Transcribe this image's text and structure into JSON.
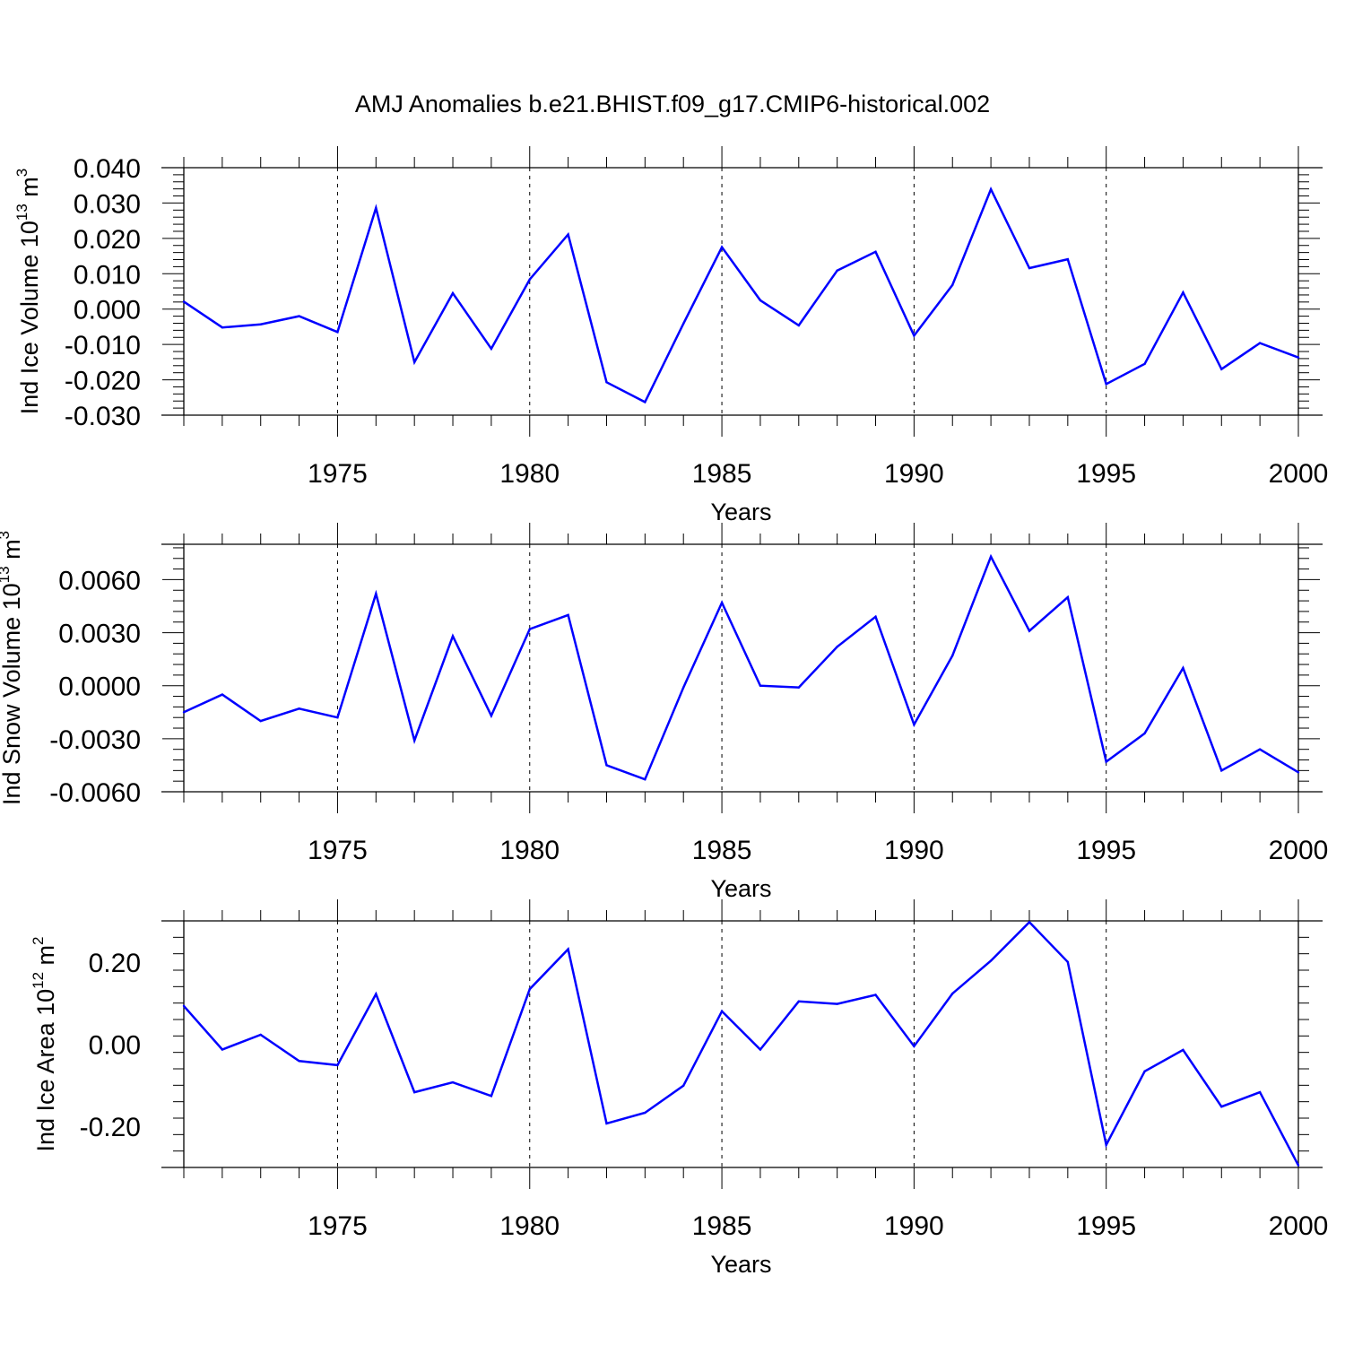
{
  "title": "AMJ Anomalies b.e21.BHIST.f09_g17.CMIP6-historical.002",
  "colors": {
    "line": "#0000ff",
    "axis": "#000000",
    "grid": "#000000"
  },
  "chart_data": [
    {
      "type": "line",
      "xlabel": "Years",
      "ylabel": {
        "text": "Ind Ice Volume 10",
        "exp": "13",
        "unit": " m",
        "unit_exp": "3"
      },
      "xlim": [
        1971,
        2000
      ],
      "ylim": [
        -0.03,
        0.04
      ],
      "xticks": [
        "1975",
        "1980",
        "1985",
        "1990",
        "1995",
        "2000"
      ],
      "yticks": [
        "-0.030",
        "-0.020",
        "-0.010",
        "0.000",
        "0.010",
        "0.020",
        "0.030",
        "0.040"
      ],
      "grid": "dashed vertical at major x ticks",
      "x": [
        1971,
        1972,
        1973,
        1974,
        1975,
        1976,
        1977,
        1978,
        1979,
        1980,
        1981,
        1982,
        1983,
        1984,
        1985,
        1986,
        1987,
        1988,
        1989,
        1990,
        1991,
        1992,
        1993,
        1994,
        1995,
        1996,
        1997,
        1998,
        1999,
        2000
      ],
      "y": [
        0.0021,
        -0.0052,
        -0.0043,
        -0.002,
        -0.0065,
        0.0286,
        -0.015,
        0.0045,
        -0.0112,
        0.0084,
        0.0211,
        -0.0207,
        -0.0263,
        -0.0041,
        0.0175,
        0.0025,
        -0.0046,
        0.0109,
        0.0162,
        -0.0075,
        0.0068,
        0.0339,
        0.0116,
        0.0141,
        -0.0212,
        -0.0155,
        0.0047,
        -0.017,
        -0.0096,
        -0.0137
      ]
    },
    {
      "type": "line",
      "xlabel": "Years",
      "ylabel": {
        "text": "Ind Snow Volume 10",
        "exp": "13",
        "unit": " m",
        "unit_exp": "3"
      },
      "xlim": [
        1971,
        2000
      ],
      "ylim": [
        -0.006,
        0.008
      ],
      "xticks": [
        "1975",
        "1980",
        "1985",
        "1990",
        "1995",
        "2000"
      ],
      "yticks": [
        "-0.0060",
        "-0.0030",
        "0.0000",
        "0.0030",
        "0.0060"
      ],
      "grid": "dashed vertical at major x ticks",
      "x": [
        1971,
        1972,
        1973,
        1974,
        1975,
        1976,
        1977,
        1978,
        1979,
        1980,
        1981,
        1982,
        1983,
        1984,
        1985,
        1986,
        1987,
        1988,
        1989,
        1990,
        1991,
        1992,
        1993,
        1994,
        1995,
        1996,
        1997,
        1998,
        1999,
        2000
      ],
      "y": [
        -0.0015,
        -0.0005,
        -0.002,
        -0.0013,
        -0.0018,
        0.0052,
        -0.0031,
        0.0028,
        -0.0017,
        0.0032,
        0.004,
        -0.0045,
        -0.0053,
        -0.0001,
        0.0047,
        0.0,
        -0.0001,
        0.0022,
        0.0039,
        -0.0022,
        0.0017,
        0.0073,
        0.0031,
        0.005,
        -0.0043,
        -0.0027,
        0.001,
        -0.0048,
        -0.0036,
        -0.0049
      ]
    },
    {
      "type": "line",
      "xlabel": "Years",
      "ylabel": {
        "text": "Ind Ice Area 10",
        "exp": "12",
        "unit": " m",
        "unit_exp": "2"
      },
      "xlim": [
        1971,
        2000
      ],
      "ylim": [
        -0.3,
        0.3
      ],
      "xticks": [
        "1975",
        "1980",
        "1985",
        "1990",
        "1995",
        "2000"
      ],
      "yticks": [
        "-0.20",
        "0.00",
        "0.20"
      ],
      "grid": "dashed vertical at major x ticks",
      "x": [
        1971,
        1972,
        1973,
        1974,
        1975,
        1976,
        1977,
        1978,
        1979,
        1980,
        1981,
        1982,
        1983,
        1984,
        1985,
        1986,
        1987,
        1988,
        1989,
        1990,
        1991,
        1992,
        1993,
        1994,
        1995,
        1996,
        1997,
        1998,
        1999,
        2000
      ],
      "y": [
        0.093,
        -0.013,
        0.023,
        -0.041,
        -0.051,
        0.122,
        -0.117,
        -0.093,
        -0.126,
        0.134,
        0.231,
        -0.193,
        -0.167,
        -0.101,
        0.08,
        -0.013,
        0.104,
        0.098,
        0.12,
        -0.005,
        0.123,
        0.203,
        0.297,
        0.2,
        -0.245,
        -0.066,
        -0.014,
        -0.152,
        -0.117,
        -0.295
      ]
    }
  ]
}
